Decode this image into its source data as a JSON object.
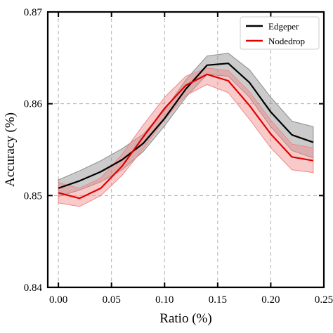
{
  "chart_data": {
    "type": "line",
    "xlabel": "Ratio (%)",
    "ylabel": "Accuracy (%)",
    "xlim": [
      -0.01,
      0.25
    ],
    "ylim": [
      0.84,
      0.87
    ],
    "x_ticks": [
      0.0,
      0.05,
      0.1,
      0.15,
      0.2,
      0.25
    ],
    "x_tick_labels": [
      "0.00",
      "0.05",
      "0.10",
      "0.15",
      "0.20",
      "0.25"
    ],
    "y_ticks": [
      0.84,
      0.85,
      0.86,
      0.87
    ],
    "y_tick_labels": [
      "0.84",
      "0.85",
      "0.86",
      "0.87"
    ],
    "grid": true,
    "legend_position": "top-right",
    "x": [
      0.0,
      0.02,
      0.04,
      0.06,
      0.08,
      0.1,
      0.12,
      0.14,
      0.16,
      0.18,
      0.2,
      0.22,
      0.24
    ],
    "series": [
      {
        "name": "Edgeper",
        "color": "#000000",
        "band_color": "#8c8c8c",
        "values": [
          0.8508,
          0.8516,
          0.8526,
          0.8539,
          0.8557,
          0.8584,
          0.8616,
          0.8642,
          0.8644,
          0.8623,
          0.8591,
          0.8566,
          0.8558
        ],
        "band_lower": [
          0.8499,
          0.8506,
          0.8515,
          0.8528,
          0.8548,
          0.8576,
          0.8607,
          0.8632,
          0.863,
          0.8607,
          0.8575,
          0.8549,
          0.8541
        ],
        "band_upper": [
          0.8517,
          0.8527,
          0.8538,
          0.8551,
          0.8567,
          0.8593,
          0.8626,
          0.8652,
          0.8655,
          0.8637,
          0.8607,
          0.8581,
          0.8575
        ]
      },
      {
        "name": "Nodedrop",
        "color": "#e00000",
        "band_color": "#ef8a8a",
        "values": [
          0.8503,
          0.8497,
          0.8508,
          0.8532,
          0.8564,
          0.8595,
          0.862,
          0.8632,
          0.8625,
          0.8598,
          0.8567,
          0.8542,
          0.8538
        ],
        "band_lower": [
          0.8492,
          0.8488,
          0.85,
          0.8522,
          0.8551,
          0.8583,
          0.8609,
          0.8621,
          0.8612,
          0.8583,
          0.8552,
          0.8528,
          0.8525
        ],
        "band_upper": [
          0.8514,
          0.8508,
          0.8519,
          0.8545,
          0.8577,
          0.8607,
          0.863,
          0.8639,
          0.8636,
          0.8613,
          0.8582,
          0.8556,
          0.8552
        ]
      }
    ]
  }
}
